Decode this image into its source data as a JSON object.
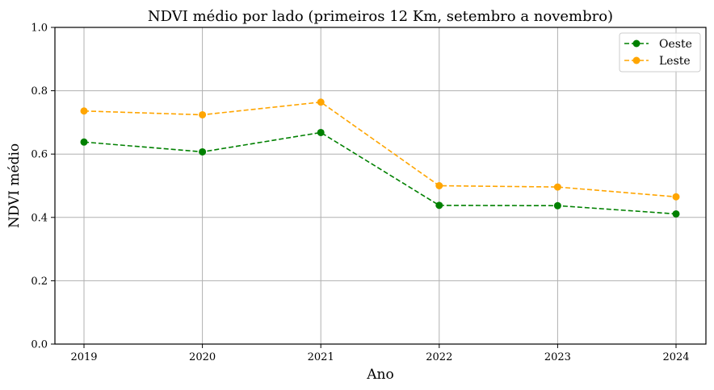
{
  "chart_data": {
    "type": "line",
    "title": "NDVI médio por lado (primeiros 12 Km, setembro a novembro)",
    "xlabel": "Ano",
    "ylabel": "NDVI médio",
    "x": [
      2019,
      2020,
      2021,
      2022,
      2023,
      2024
    ],
    "x_tick_labels": [
      "2019",
      "2020",
      "2021",
      "2022",
      "2023",
      "2024"
    ],
    "ylim": [
      0.0,
      1.0
    ],
    "y_ticks": [
      0.0,
      0.2,
      0.4,
      0.6,
      0.8,
      1.0
    ],
    "y_tick_labels": [
      "0.0",
      "0.2",
      "0.4",
      "0.6",
      "0.8",
      "1.0"
    ],
    "grid": true,
    "legend_position": "top-right",
    "series": [
      {
        "name": "Oeste",
        "color": "#008000",
        "line_style": "dashed",
        "marker": "circle",
        "values": [
          0.638,
          0.607,
          0.668,
          0.438,
          0.437,
          0.411
        ]
      },
      {
        "name": "Leste",
        "color": "#FFA500",
        "line_style": "dashed",
        "marker": "circle",
        "values": [
          0.736,
          0.724,
          0.764,
          0.5,
          0.496,
          0.465
        ]
      }
    ]
  }
}
